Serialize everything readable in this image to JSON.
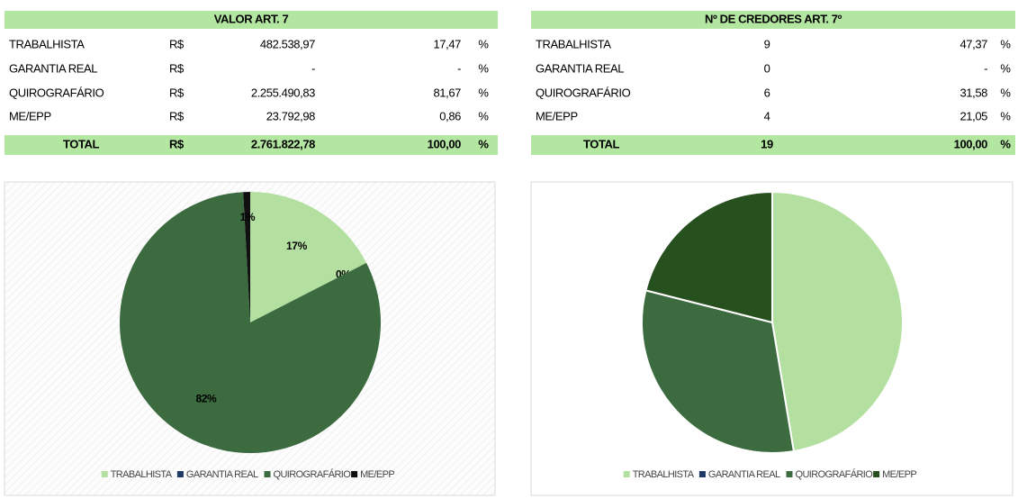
{
  "tables": [
    {
      "title": "VALOR ART. 7",
      "rows": [
        [
          "TRABALHISTA",
          "R$",
          "482.538,97",
          "17,47",
          "%"
        ],
        [
          "GARANTIA REAL",
          "R$",
          "-",
          "-",
          "%"
        ],
        [
          "QUIROGRAFÁRIO",
          "R$",
          "2.255.490,83",
          "81,67",
          "%"
        ],
        [
          "ME/EPP",
          "R$",
          "23.792,98",
          "0,86",
          "%"
        ]
      ],
      "total": [
        "TOTAL",
        "R$",
        "2.761.822,78",
        "100,00",
        "%"
      ]
    },
    {
      "title": "Nº DE CREDORES ART. 7º",
      "rows": [
        [
          "TRABALHISTA",
          "9",
          "47,37",
          "%"
        ],
        [
          "GARANTIA REAL",
          "0",
          "-",
          "%"
        ],
        [
          "QUIROGRAFÁRIO",
          "6",
          "31,58",
          "%"
        ],
        [
          "ME/EPP",
          "4",
          "21,05",
          "%"
        ]
      ],
      "total": [
        "TOTAL",
        "19",
        "100,00",
        "%"
      ]
    }
  ],
  "chart_data": [
    {
      "type": "pie",
      "categories": [
        "TRABALHISTA",
        "GARANTIA REAL",
        "QUIROGRAFÁRIO",
        "ME/EPP"
      ],
      "values": [
        17.47,
        0,
        81.67,
        0.86
      ],
      "value_labels": [
        "17%",
        "0%",
        "82%",
        "1%"
      ],
      "colors": [
        "#b3e0a0",
        "#1f3864",
        "#3b6b3f",
        "#111111"
      ]
    },
    {
      "type": "pie",
      "categories": [
        "TRABALHISTA",
        "GARANTIA REAL",
        "QUIROGRAFÁRIO",
        "ME/EPP"
      ],
      "values": [
        9,
        0,
        6,
        4
      ],
      "colors": [
        "#b3e0a0",
        "#1f3864",
        "#3b6b3f",
        "#27501f"
      ]
    }
  ]
}
